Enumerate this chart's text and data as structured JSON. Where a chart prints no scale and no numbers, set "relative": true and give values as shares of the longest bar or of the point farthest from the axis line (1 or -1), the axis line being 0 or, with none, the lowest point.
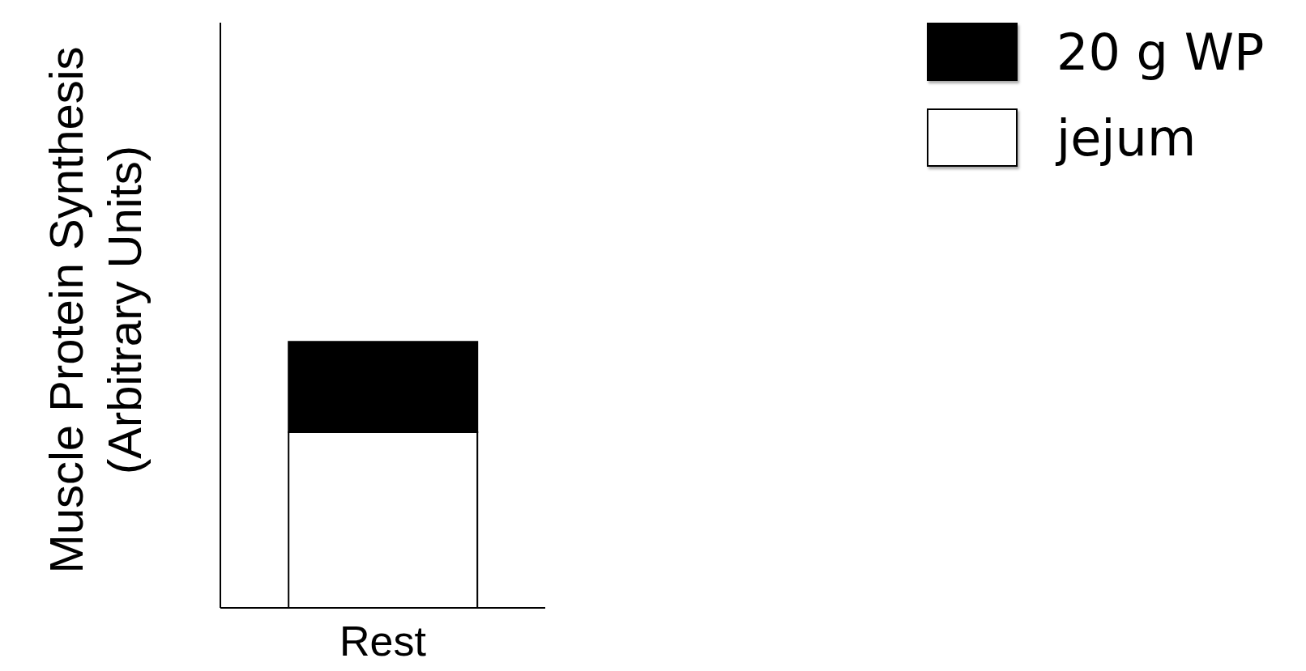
{
  "chart_data": {
    "type": "bar",
    "stacked": true,
    "relative": true,
    "ylabel": "Muscle Protein Synthesis (Arbitrary Units)",
    "categories": [
      "Rest"
    ],
    "legend": "top right",
    "series": [
      {
        "name": "jejum",
        "color": "#ffffff",
        "values": [
          0.66
        ]
      },
      {
        "name": "20 g WP",
        "color": "#000000",
        "values": [
          0.34
        ]
      }
    ]
  }
}
